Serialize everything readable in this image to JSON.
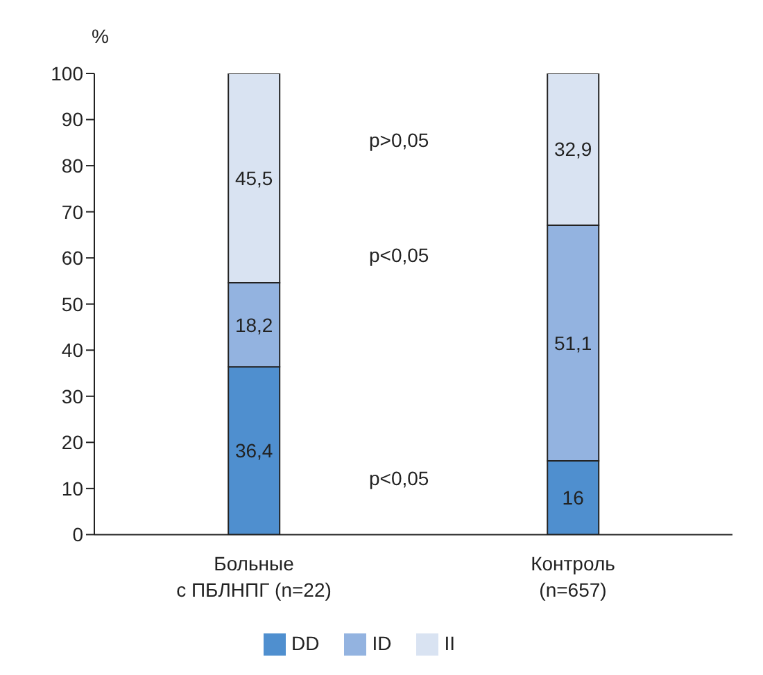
{
  "chart_data": {
    "type": "bar",
    "stacked": true,
    "ylabel": "%",
    "categories": [
      "Больные\nс ПБЛНПГ (n=22)",
      "Контроль\n(n=657)"
    ],
    "series": [
      {
        "name": "DD",
        "color": "#4f8fcf",
        "values": [
          36.4,
          16
        ],
        "value_labels": [
          "36,4",
          "16"
        ]
      },
      {
        "name": "ID",
        "color": "#93b3e0",
        "values": [
          18.2,
          51.1
        ],
        "value_labels": [
          "18,2",
          "51,1"
        ]
      },
      {
        "name": "II",
        "color": "#d9e3f2",
        "values": [
          45.5,
          32.9
        ],
        "value_labels": [
          "45,5",
          "32,9"
        ]
      }
    ],
    "ylim": [
      0,
      100
    ],
    "yticks": [
      0,
      10,
      20,
      30,
      40,
      50,
      60,
      70,
      80,
      90,
      100
    ],
    "annotations": [
      "p>0,05",
      "p<0,05",
      "p<0,05"
    ],
    "grid": false,
    "legend": "bottom"
  }
}
